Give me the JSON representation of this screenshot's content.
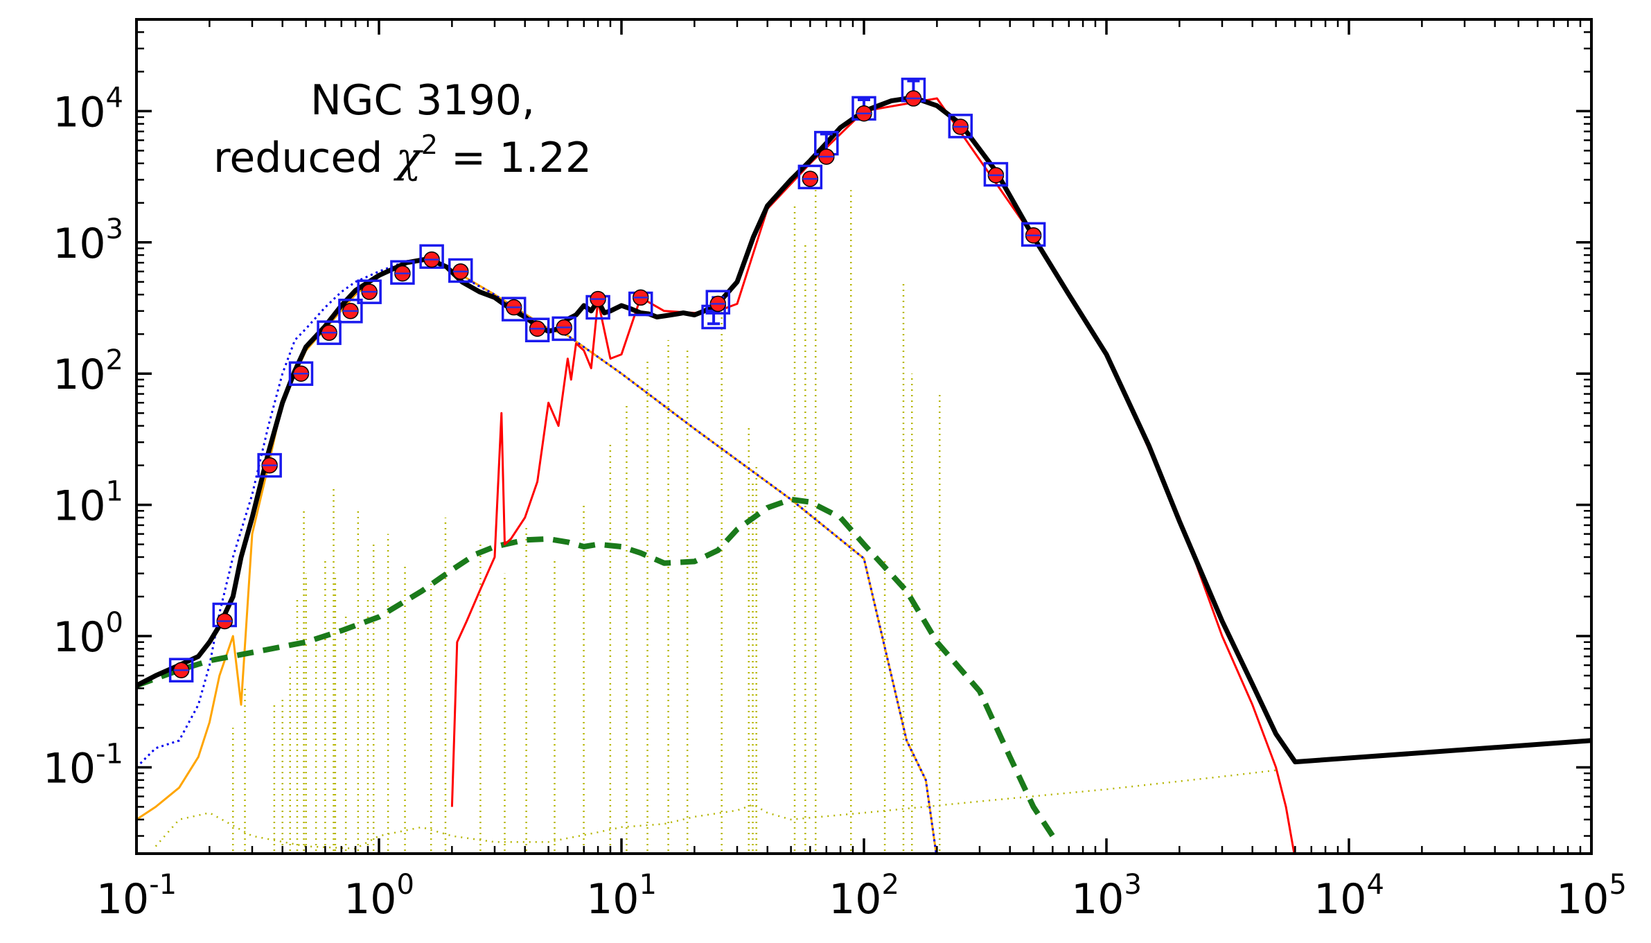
{
  "chart_data": {
    "type": "line",
    "title": "",
    "xlabel": "",
    "ylabel": "",
    "x_scale": "log",
    "y_scale": "log",
    "xlim": [
      0.1,
      100000
    ],
    "ylim": [
      0.022,
      50000
    ],
    "x_ticks": [
      {
        "value": 0.1,
        "base": "10",
        "exp": "-1"
      },
      {
        "value": 1,
        "base": "10",
        "exp": "0"
      },
      {
        "value": 10,
        "base": "10",
        "exp": "1"
      },
      {
        "value": 100,
        "base": "10",
        "exp": "2"
      },
      {
        "value": 1000,
        "base": "10",
        "exp": "3"
      },
      {
        "value": 10000,
        "base": "10",
        "exp": "4"
      },
      {
        "value": 100000,
        "base": "10",
        "exp": "5"
      }
    ],
    "y_ticks": [
      {
        "value": 0.1,
        "base": "10",
        "exp": "-1"
      },
      {
        "value": 1,
        "base": "10",
        "exp": "0"
      },
      {
        "value": 10,
        "base": "10",
        "exp": "1"
      },
      {
        "value": 100,
        "base": "10",
        "exp": "2"
      },
      {
        "value": 1000,
        "base": "10",
        "exp": "3"
      },
      {
        "value": 10000,
        "base": "10",
        "exp": "4"
      }
    ],
    "annotation": {
      "line1": "NGC 3190,",
      "line2_prefix": "reduced ",
      "chi": "χ",
      "chi_exp": "2",
      "line2_suffix": " = 1.22"
    },
    "grid": false,
    "legend": "none",
    "series": [
      {
        "style": "black-solid-thick",
        "color": "#000000",
        "x": [
          0.1,
          0.12,
          0.15,
          0.18,
          0.2,
          0.22,
          0.25,
          0.27,
          0.3,
          0.35,
          0.4,
          0.45,
          0.5,
          0.6,
          0.7,
          0.8,
          1.0,
          1.3,
          1.6,
          1.9,
          2.2,
          2.6,
          3.0,
          3.5,
          4.0,
          4.5,
          5.0,
          5.5,
          6.0,
          6.5,
          7.0,
          7.5,
          8.0,
          8.5,
          9.0,
          10,
          11,
          12,
          13,
          14,
          15,
          16,
          17,
          18,
          20,
          22,
          25,
          30,
          35,
          40,
          50,
          60,
          70,
          80,
          100,
          130,
          160,
          200,
          250,
          350,
          500,
          700,
          1000,
          1500,
          2000,
          3000,
          4000,
          5000,
          6000,
          100000
        ],
        "y": [
          0.42,
          0.5,
          0.6,
          0.7,
          0.9,
          1.2,
          2.0,
          4.0,
          8.0,
          25,
          60,
          105,
          160,
          230,
          330,
          430,
          560,
          700,
          750,
          650,
          500,
          420,
          380,
          310,
          270,
          230,
          210,
          220,
          260,
          280,
          330,
          300,
          360,
          290,
          300,
          330,
          310,
          290,
          285,
          270,
          275,
          280,
          285,
          290,
          280,
          300,
          340,
          500,
          1100,
          1900,
          3000,
          4200,
          5700,
          7500,
          10000,
          12000,
          12700,
          11000,
          8000,
          3500,
          1100,
          400,
          140,
          28,
          7.5,
          1.3,
          0.43,
          0.18,
          0.11,
          0.16
        ]
      },
      {
        "style": "red-solid",
        "color": "#ff0000",
        "x": [
          2.0,
          2.1,
          2.3,
          2.6,
          3.0,
          3.2,
          3.3,
          3.5,
          4.0,
          4.5,
          5.0,
          5.5,
          6.0,
          6.2,
          6.5,
          7.0,
          7.5,
          8.0,
          9.0,
          10,
          12,
          15,
          20,
          25,
          30,
          40,
          60,
          100,
          200,
          500,
          1000,
          2000,
          3000,
          4000,
          5000,
          5500,
          6000
        ],
        "y": [
          0.05,
          0.9,
          1.3,
          2.2,
          4.0,
          50,
          5.0,
          5.5,
          8.0,
          15,
          60,
          40,
          130,
          90,
          170,
          150,
          110,
          360,
          130,
          140,
          380,
          300,
          290,
          300,
          340,
          1800,
          4000,
          10000,
          12500,
          1100,
          140,
          8.0,
          1.0,
          0.3,
          0.1,
          0.05,
          0.02
        ]
      },
      {
        "style": "blue-dotted",
        "color": "#0000ee",
        "x": [
          0.1,
          0.12,
          0.15,
          0.18,
          0.2,
          0.22,
          0.25,
          0.3,
          0.35,
          0.4,
          0.45,
          0.5,
          0.6,
          0.7,
          0.8,
          1.0,
          1.3,
          1.6,
          2.0,
          2.5,
          3.0,
          4.0,
          5.0,
          6.0,
          10,
          20,
          50,
          100,
          150,
          180,
          200
        ],
        "y": [
          0.1,
          0.14,
          0.16,
          0.3,
          0.6,
          1.5,
          4.0,
          12,
          40,
          100,
          180,
          220,
          320,
          420,
          500,
          600,
          720,
          740,
          620,
          480,
          400,
          280,
          220,
          195,
          100,
          38,
          11,
          3.9,
          0.16,
          0.08,
          0.02
        ]
      },
      {
        "style": "orange-solid",
        "color": "#ffa500",
        "x": [
          0.1,
          0.12,
          0.15,
          0.18,
          0.2,
          0.22,
          0.25,
          0.27,
          0.3,
          0.35,
          0.4,
          0.5,
          0.6,
          0.8,
          1.0,
          1.3,
          1.6,
          2.0,
          3.0,
          5.0,
          6.0,
          10,
          20,
          50,
          100,
          150,
          180,
          200
        ],
        "y": [
          0.04,
          0.05,
          0.07,
          0.12,
          0.22,
          0.5,
          1.0,
          0.3,
          6.0,
          20,
          60,
          150,
          220,
          400,
          560,
          720,
          740,
          620,
          400,
          220,
          195,
          100,
          38,
          11,
          3.9,
          0.16,
          0.08,
          0.02
        ]
      },
      {
        "style": "green-dashed-thick",
        "color": "#1a7a1a",
        "x": [
          0.1,
          0.15,
          0.2,
          0.3,
          0.5,
          0.7,
          1.0,
          1.5,
          2.0,
          2.5,
          3.0,
          4.0,
          5.0,
          6.0,
          7.0,
          8.0,
          10,
          12,
          15,
          20,
          25,
          30,
          40,
          50,
          60,
          80,
          100,
          150,
          200,
          300,
          400,
          500,
          600
        ],
        "y": [
          0.42,
          0.55,
          0.65,
          0.75,
          0.9,
          1.1,
          1.4,
          2.2,
          3.2,
          4.2,
          4.8,
          5.4,
          5.5,
          5.2,
          4.8,
          5.0,
          4.8,
          4.3,
          3.6,
          3.7,
          4.5,
          6.5,
          9.5,
          11,
          10.5,
          8.0,
          5.0,
          2.2,
          0.9,
          0.38,
          0.12,
          0.05,
          0.03
        ]
      },
      {
        "style": "olive-dotted-continuum",
        "color": "#b5b500",
        "x": [
          0.12,
          0.15,
          0.2,
          0.3,
          0.5,
          0.8,
          1.0,
          1.5,
          2.0,
          3.0,
          5.0,
          8.0,
          10,
          15,
          20,
          30,
          35,
          40,
          50,
          100,
          300,
          1000,
          3000,
          5000
        ],
        "y": [
          0.025,
          0.04,
          0.045,
          0.03,
          0.025,
          0.024,
          0.03,
          0.035,
          0.03,
          0.027,
          0.027,
          0.032,
          0.035,
          0.037,
          0.042,
          0.047,
          0.052,
          0.045,
          0.04,
          0.045,
          0.055,
          0.068,
          0.085,
          0.095
        ]
      }
    ],
    "emission_lines": {
      "style": "olive-dotted-vertical",
      "color": "#b5b500",
      "lines": [
        {
          "x": 0.25,
          "y": 0.2
        },
        {
          "x": 0.28,
          "y": 0.4
        },
        {
          "x": 0.37,
          "y": 0.3
        },
        {
          "x": 0.4,
          "y": 0.35
        },
        {
          "x": 0.43,
          "y": 0.6
        },
        {
          "x": 0.46,
          "y": 2.0
        },
        {
          "x": 0.49,
          "y": 9.0
        },
        {
          "x": 0.5,
          "y": 3.0
        },
        {
          "x": 0.55,
          "y": 1.0
        },
        {
          "x": 0.6,
          "y": 4.0
        },
        {
          "x": 0.65,
          "y": 14
        },
        {
          "x": 0.66,
          "y": 3.0
        },
        {
          "x": 0.73,
          "y": 1.5
        },
        {
          "x": 0.82,
          "y": 9.0
        },
        {
          "x": 0.9,
          "y": 2.0
        },
        {
          "x": 0.95,
          "y": 5.0
        },
        {
          "x": 1.09,
          "y": 6.0
        },
        {
          "x": 1.28,
          "y": 3.5
        },
        {
          "x": 1.64,
          "y": 2.5
        },
        {
          "x": 1.88,
          "y": 8.0
        },
        {
          "x": 2.62,
          "y": 5.0
        },
        {
          "x": 3.3,
          "y": 3.0
        },
        {
          "x": 4.05,
          "y": 7.0
        },
        {
          "x": 5.3,
          "y": 4.0
        },
        {
          "x": 6.99,
          "y": 10
        },
        {
          "x": 8.99,
          "y": 30
        },
        {
          "x": 10.5,
          "y": 60
        },
        {
          "x": 12.8,
          "y": 130
        },
        {
          "x": 15.6,
          "y": 180
        },
        {
          "x": 18.7,
          "y": 160
        },
        {
          "x": 25.9,
          "y": 300
        },
        {
          "x": 33.5,
          "y": 40
        },
        {
          "x": 34.8,
          "y": 15
        },
        {
          "x": 36,
          "y": 20
        },
        {
          "x": 51.8,
          "y": 2000
        },
        {
          "x": 57.3,
          "y": 1000
        },
        {
          "x": 63.2,
          "y": 2500
        },
        {
          "x": 88.4,
          "y": 2500
        },
        {
          "x": 121.9,
          "y": 4
        },
        {
          "x": 145.5,
          "y": 500
        },
        {
          "x": 157.7,
          "y": 100
        },
        {
          "x": 205.2,
          "y": 70
        }
      ]
    },
    "observations": {
      "style": "blue-open-square-with-errorbar",
      "color": "#1a1aee",
      "points": [
        {
          "x": 0.153,
          "y": 0.55,
          "yerr": 0
        },
        {
          "x": 0.231,
          "y": 1.45,
          "yerr": 0
        },
        {
          "x": 0.354,
          "y": 20,
          "yerr": 0
        },
        {
          "x": 0.477,
          "y": 100,
          "yerr": 0
        },
        {
          "x": 0.623,
          "y": 205,
          "yerr": 0
        },
        {
          "x": 0.763,
          "y": 300,
          "yerr": 0
        },
        {
          "x": 0.913,
          "y": 420,
          "yerr": 0
        },
        {
          "x": 1.25,
          "y": 590,
          "yerr": 0
        },
        {
          "x": 1.65,
          "y": 780,
          "yerr": 0
        },
        {
          "x": 2.17,
          "y": 610,
          "yerr": 0
        },
        {
          "x": 3.6,
          "y": 310,
          "yerr": 0
        },
        {
          "x": 4.5,
          "y": 215,
          "yerr": 0
        },
        {
          "x": 5.8,
          "y": 220,
          "yerr": 0
        },
        {
          "x": 8.0,
          "y": 320,
          "yerr": 0
        },
        {
          "x": 12,
          "y": 340,
          "yerr": 0
        },
        {
          "x": 24,
          "y": 270,
          "yerr": 30
        },
        {
          "x": 25,
          "y": 350,
          "yerr": 30
        },
        {
          "x": 60,
          "y": 3150,
          "yerr": 0
        },
        {
          "x": 70,
          "y": 5700,
          "yerr": 1000
        },
        {
          "x": 100,
          "y": 10500,
          "yerr": 1700
        },
        {
          "x": 160,
          "y": 14500,
          "yerr": 2500
        },
        {
          "x": 250,
          "y": 7700,
          "yerr": 0
        },
        {
          "x": 350,
          "y": 3300,
          "yerr": 0
        },
        {
          "x": 500,
          "y": 1150,
          "yerr": 0
        }
      ]
    },
    "model_points": {
      "style": "red-filled-circle",
      "color": "#ff1a1a",
      "points": [
        {
          "x": 0.153,
          "y": 0.55
        },
        {
          "x": 0.231,
          "y": 1.3
        },
        {
          "x": 0.354,
          "y": 20
        },
        {
          "x": 0.477,
          "y": 100
        },
        {
          "x": 0.623,
          "y": 205
        },
        {
          "x": 0.763,
          "y": 300
        },
        {
          "x": 0.913,
          "y": 420
        },
        {
          "x": 1.25,
          "y": 580
        },
        {
          "x": 1.65,
          "y": 740
        },
        {
          "x": 2.17,
          "y": 600
        },
        {
          "x": 3.6,
          "y": 320
        },
        {
          "x": 4.5,
          "y": 220
        },
        {
          "x": 5.8,
          "y": 225
        },
        {
          "x": 8.0,
          "y": 370
        },
        {
          "x": 12,
          "y": 380
        },
        {
          "x": 25,
          "y": 340
        },
        {
          "x": 60,
          "y": 3050
        },
        {
          "x": 70,
          "y": 4500
        },
        {
          "x": 100,
          "y": 9600
        },
        {
          "x": 160,
          "y": 12500
        },
        {
          "x": 250,
          "y": 7600
        },
        {
          "x": 350,
          "y": 3250
        },
        {
          "x": 500,
          "y": 1130
        }
      ]
    }
  }
}
